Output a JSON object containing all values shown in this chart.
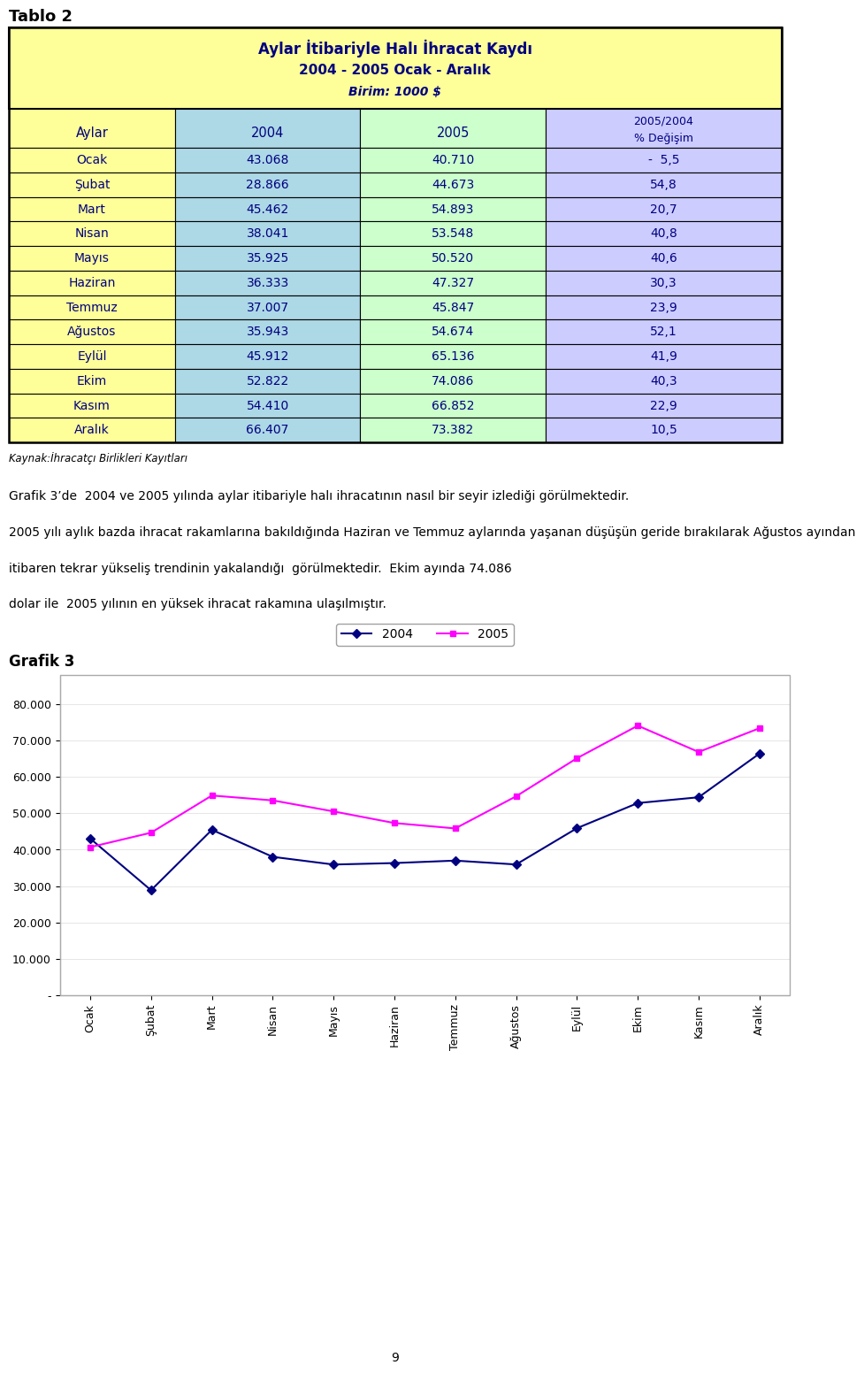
{
  "title_tablo": "Tablo 2",
  "table_title_line1": "Aylar İtibariyle Halı İhracat Kaydı",
  "table_title_line2": "2004 - 2005 Ocak - Aralık",
  "table_title_line3": "Birim: 1000 $",
  "col_header_1": "Aylar",
  "col_header_2": "2004",
  "col_header_3": "2005",
  "col_header_4a": "2005/2004",
  "col_header_4b": "% Değişim",
  "months": [
    "Ocak",
    "Şubat",
    "Mart",
    "Nisan",
    "Mayıs",
    "Haziran",
    "Temmuz",
    "Ağustos",
    "Eylül",
    "Ekim",
    "Kasım",
    "Aralık"
  ],
  "values_2004": [
    43068,
    28866,
    45462,
    38041,
    35925,
    36333,
    37007,
    35943,
    45912,
    52822,
    54410,
    66407
  ],
  "values_2005": [
    40710,
    44673,
    54893,
    53548,
    50520,
    47327,
    45847,
    54674,
    65136,
    74086,
    66852,
    73382
  ],
  "changes": [
    "-  5,5",
    "54,8",
    "20,7",
    "40,8",
    "40,6",
    "30,3",
    "23,9",
    "52,1",
    "41,9",
    "40,3",
    "22,9",
    "10,5"
  ],
  "values_2004_str": [
    "43.068",
    "28.866",
    "45.462",
    "38.041",
    "35.925",
    "36.333",
    "37.007",
    "35.943",
    "45.912",
    "52.822",
    "54.410",
    "66.407"
  ],
  "values_2005_str": [
    "40.710",
    "44.673",
    "54.893",
    "53.548",
    "50.520",
    "47.327",
    "45.847",
    "54.674",
    "65.136",
    "74.086",
    "66.852",
    "73.382"
  ],
  "source_text": "Kaynak:İhracatçı Birlikleri Kayıtları",
  "body_lines": [
    "Grafik 3’de  2004 ve 2005 yılında aylar itibariyle halı ihracatının nasıl bir seyir izlediği görülmektedir.",
    "2005 yılı aylık bazda ihracat rakamlarına bakıldığında Haziran ve Temmuz aylarında yaşanan düşüşün geride bırakılarak Ağustos ayından",
    "itibaren tekrar yükseliş trendinin yakalandığı  görülmektedir.  Ekim ayında 74.086",
    "dolar ile  2005 yılının en yüksek ihracat rakamına ulaşılmıştır."
  ],
  "grafik_label": "Grafik 3",
  "legend_2004": "2004",
  "legend_2005": "2005",
  "color_table_bg": "#FFFF99",
  "color_header_blue": "#ADD8E6",
  "color_header_green": "#CCFFCC",
  "color_header_purple": "#CCCCFF",
  "color_2004_line": "#000080",
  "color_2005_line": "#FF00FF",
  "page_number": "9"
}
